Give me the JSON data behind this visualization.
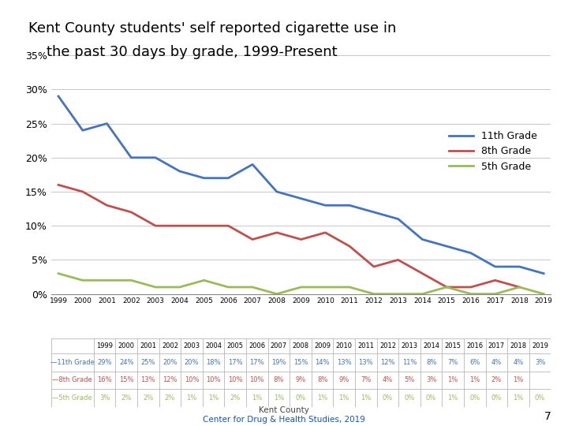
{
  "title_line1": "Kent County students' self reported cigarette use in",
  "title_line2": "    the past 30 days by grade, 1999-Present",
  "years": [
    1999,
    2000,
    2001,
    2002,
    2003,
    2004,
    2005,
    2006,
    2007,
    2008,
    2009,
    2010,
    2011,
    2012,
    2013,
    2014,
    2015,
    2016,
    2017,
    2018,
    2019
  ],
  "grade_11": [
    29,
    24,
    25,
    20,
    20,
    18,
    17,
    17,
    19,
    15,
    14,
    13,
    13,
    12,
    11,
    8,
    7,
    6,
    4,
    4,
    3
  ],
  "grade_8": [
    16,
    15,
    13,
    12,
    10,
    10,
    10,
    10,
    8,
    9,
    8,
    9,
    7,
    4,
    5,
    3,
    1,
    1,
    2,
    1,
    null
  ],
  "grade_5": [
    3,
    2,
    2,
    2,
    1,
    1,
    2,
    1,
    1,
    0,
    1,
    1,
    1,
    0,
    0,
    0,
    1,
    0,
    0,
    1,
    0
  ],
  "color_11": "#4472c4",
  "color_8": "#c0504d",
  "color_5": "#9bbb59",
  "ylabel_ticks": [
    0,
    5,
    10,
    15,
    20,
    25,
    30,
    35
  ],
  "footer_line1": "Kent County",
  "footer_line2": "Center for Drug & Health Studies, 2019",
  "page_number": "7"
}
